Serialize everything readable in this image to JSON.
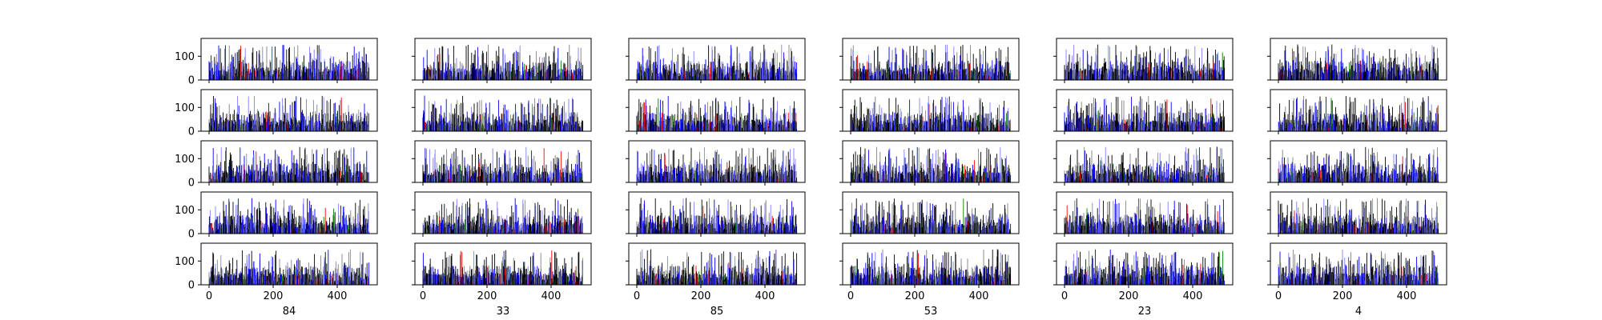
{
  "chart_data": {
    "type": "bar",
    "layout": {
      "rows": 5,
      "cols": 6
    },
    "column_xlabels": [
      "84",
      "33",
      "85",
      "53",
      "23",
      "4"
    ],
    "xlim": [
      -25,
      525
    ],
    "ylim": [
      0,
      175
    ],
    "x_ticks": [
      0,
      200,
      400
    ],
    "x_tick_labels": [
      "0",
      "200",
      "400"
    ],
    "y_ticks": [
      0,
      100
    ],
    "y_tick_labels": [
      "0",
      "100"
    ],
    "bars_per_panel": 500,
    "bar_value_range": [
      0,
      150
    ],
    "bar_colors": [
      "#000000",
      "#0000ff",
      "#7f7fff",
      "#808080",
      "#ff0000",
      "#008000"
    ],
    "grid": false,
    "legend": "none"
  }
}
